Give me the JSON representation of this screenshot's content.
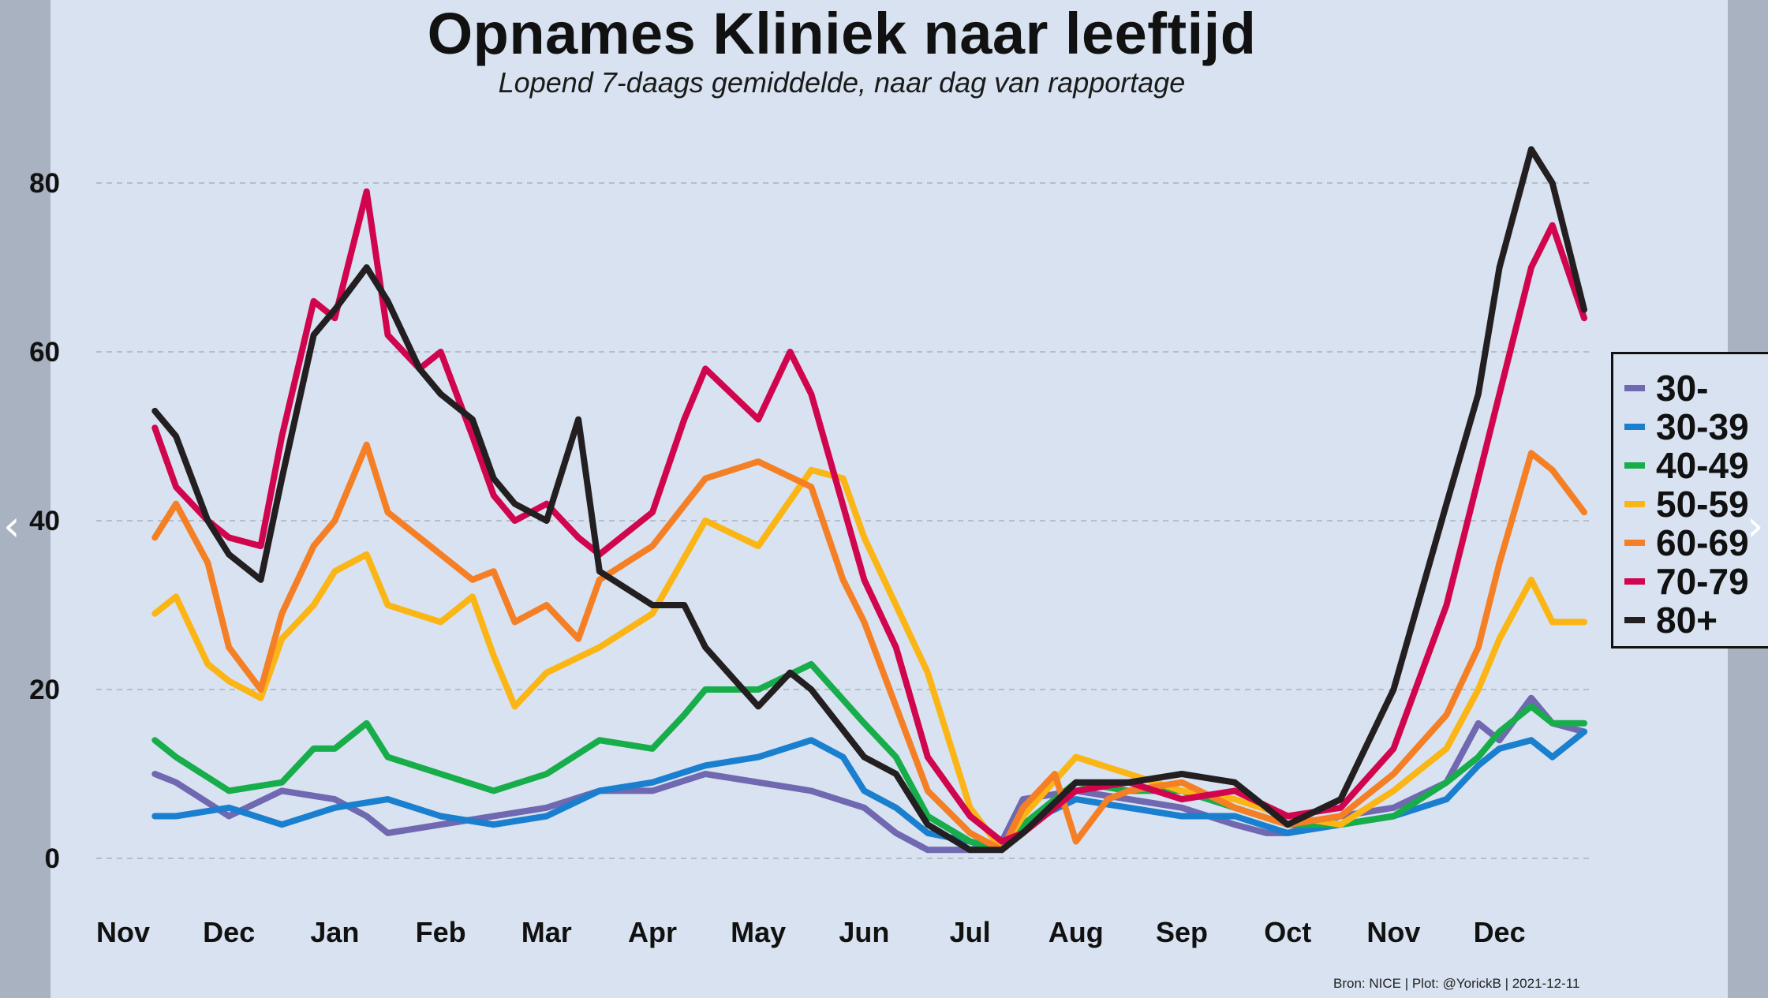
{
  "title": "Opnames Kliniek naar leeftijd",
  "subtitle": "Lopend 7-daags gemiddelde, naar dag van rapportage",
  "source": "Bron: NICE | Plot: @YorickB  |  2021-12-11",
  "nav": {
    "prev_icon": "chevron-left-icon",
    "next_icon": "chevron-right-icon"
  },
  "chart_data": {
    "type": "line",
    "x_unit": "month",
    "x_labels": [
      "Nov",
      "Dec",
      "Jan",
      "Feb",
      "Mar",
      "Apr",
      "May",
      "Jun",
      "Jul",
      "Aug",
      "Sep",
      "Oct",
      "Nov",
      "Dec"
    ],
    "ylim": [
      0,
      90
    ],
    "yticks": [
      0,
      20,
      40,
      60,
      80
    ],
    "grid": "horizontal dashed",
    "legend_position": "right",
    "series": [
      {
        "name": "30-",
        "color": "#7068b0",
        "points": [
          [
            0.3,
            10
          ],
          [
            0.5,
            9
          ],
          [
            1.0,
            5
          ],
          [
            1.5,
            8
          ],
          [
            2.0,
            7
          ],
          [
            2.3,
            5
          ],
          [
            2.5,
            3
          ],
          [
            3.0,
            4
          ],
          [
            3.5,
            5
          ],
          [
            4.0,
            6
          ],
          [
            4.5,
            8
          ],
          [
            5.0,
            8
          ],
          [
            5.5,
            10
          ],
          [
            6.0,
            9
          ],
          [
            6.5,
            8
          ],
          [
            7.0,
            6
          ],
          [
            7.3,
            3
          ],
          [
            7.6,
            1
          ],
          [
            8.0,
            1
          ],
          [
            8.3,
            2
          ],
          [
            8.5,
            7
          ],
          [
            9.0,
            8
          ],
          [
            9.5,
            7
          ],
          [
            10.0,
            6
          ],
          [
            10.5,
            4
          ],
          [
            10.8,
            3
          ],
          [
            11.0,
            3
          ],
          [
            11.5,
            5
          ],
          [
            12.0,
            6
          ],
          [
            12.5,
            9
          ],
          [
            12.8,
            16
          ],
          [
            13.0,
            14
          ],
          [
            13.3,
            19
          ],
          [
            13.5,
            16
          ],
          [
            13.8,
            15
          ]
        ]
      },
      {
        "name": "30-39",
        "color": "#1a7fcf",
        "points": [
          [
            0.3,
            5
          ],
          [
            0.5,
            5
          ],
          [
            1.0,
            6
          ],
          [
            1.5,
            4
          ],
          [
            2.0,
            6
          ],
          [
            2.5,
            7
          ],
          [
            3.0,
            5
          ],
          [
            3.5,
            4
          ],
          [
            4.0,
            5
          ],
          [
            4.5,
            8
          ],
          [
            5.0,
            9
          ],
          [
            5.5,
            11
          ],
          [
            6.0,
            12
          ],
          [
            6.5,
            14
          ],
          [
            6.8,
            12
          ],
          [
            7.0,
            8
          ],
          [
            7.3,
            6
          ],
          [
            7.6,
            3
          ],
          [
            8.0,
            2
          ],
          [
            8.3,
            1
          ],
          [
            8.5,
            4
          ],
          [
            9.0,
            7
          ],
          [
            9.5,
            6
          ],
          [
            10.0,
            5
          ],
          [
            10.5,
            5
          ],
          [
            11.0,
            3
          ],
          [
            11.5,
            4
          ],
          [
            12.0,
            5
          ],
          [
            12.5,
            7
          ],
          [
            12.8,
            11
          ],
          [
            13.0,
            13
          ],
          [
            13.3,
            14
          ],
          [
            13.5,
            12
          ],
          [
            13.8,
            15
          ]
        ]
      },
      {
        "name": "40-49",
        "color": "#17ad4a",
        "points": [
          [
            0.3,
            14
          ],
          [
            0.5,
            12
          ],
          [
            1.0,
            8
          ],
          [
            1.5,
            9
          ],
          [
            1.8,
            13
          ],
          [
            2.0,
            13
          ],
          [
            2.3,
            16
          ],
          [
            2.5,
            12
          ],
          [
            3.0,
            10
          ],
          [
            3.5,
            8
          ],
          [
            4.0,
            10
          ],
          [
            4.5,
            14
          ],
          [
            5.0,
            13
          ],
          [
            5.3,
            17
          ],
          [
            5.5,
            20
          ],
          [
            6.0,
            20
          ],
          [
            6.5,
            23
          ],
          [
            7.0,
            16
          ],
          [
            7.3,
            12
          ],
          [
            7.6,
            5
          ],
          [
            8.0,
            2
          ],
          [
            8.3,
            1
          ],
          [
            8.5,
            4
          ],
          [
            9.0,
            9
          ],
          [
            9.5,
            8
          ],
          [
            10.0,
            8
          ],
          [
            10.5,
            6
          ],
          [
            11.0,
            4
          ],
          [
            11.5,
            4
          ],
          [
            12.0,
            5
          ],
          [
            12.5,
            9
          ],
          [
            12.8,
            12
          ],
          [
            13.0,
            15
          ],
          [
            13.3,
            18
          ],
          [
            13.5,
            16
          ],
          [
            13.8,
            16
          ]
        ]
      },
      {
        "name": "50-59",
        "color": "#fbb514",
        "points": [
          [
            0.3,
            29
          ],
          [
            0.5,
            31
          ],
          [
            0.8,
            23
          ],
          [
            1.0,
            21
          ],
          [
            1.3,
            19
          ],
          [
            1.5,
            26
          ],
          [
            1.8,
            30
          ],
          [
            2.0,
            34
          ],
          [
            2.3,
            36
          ],
          [
            2.5,
            30
          ],
          [
            3.0,
            28
          ],
          [
            3.3,
            31
          ],
          [
            3.5,
            24
          ],
          [
            3.7,
            18
          ],
          [
            4.0,
            22
          ],
          [
            4.5,
            25
          ],
          [
            5.0,
            29
          ],
          [
            5.5,
            40
          ],
          [
            6.0,
            37
          ],
          [
            6.5,
            46
          ],
          [
            6.8,
            45
          ],
          [
            7.0,
            38
          ],
          [
            7.3,
            30
          ],
          [
            7.6,
            22
          ],
          [
            8.0,
            6
          ],
          [
            8.3,
            1
          ],
          [
            8.5,
            5
          ],
          [
            9.0,
            12
          ],
          [
            9.5,
            10
          ],
          [
            10.0,
            8
          ],
          [
            10.5,
            7
          ],
          [
            11.0,
            5
          ],
          [
            11.5,
            4
          ],
          [
            12.0,
            8
          ],
          [
            12.5,
            13
          ],
          [
            12.8,
            20
          ],
          [
            13.0,
            26
          ],
          [
            13.3,
            33
          ],
          [
            13.5,
            28
          ],
          [
            13.8,
            28
          ]
        ]
      },
      {
        "name": "60-69",
        "color": "#f57f25",
        "points": [
          [
            0.3,
            38
          ],
          [
            0.5,
            42
          ],
          [
            0.8,
            35
          ],
          [
            1.0,
            25
          ],
          [
            1.3,
            20
          ],
          [
            1.5,
            29
          ],
          [
            1.8,
            37
          ],
          [
            2.0,
            40
          ],
          [
            2.3,
            49
          ],
          [
            2.5,
            41
          ],
          [
            3.0,
            36
          ],
          [
            3.3,
            33
          ],
          [
            3.5,
            34
          ],
          [
            3.7,
            28
          ],
          [
            4.0,
            30
          ],
          [
            4.3,
            26
          ],
          [
            4.5,
            33
          ],
          [
            5.0,
            37
          ],
          [
            5.5,
            45
          ],
          [
            6.0,
            47
          ],
          [
            6.5,
            44
          ],
          [
            6.8,
            33
          ],
          [
            7.0,
            28
          ],
          [
            7.3,
            18
          ],
          [
            7.6,
            8
          ],
          [
            8.0,
            3
          ],
          [
            8.3,
            1
          ],
          [
            8.5,
            6
          ],
          [
            8.8,
            10
          ],
          [
            9.0,
            2
          ],
          [
            9.3,
            7
          ],
          [
            9.5,
            8
          ],
          [
            10.0,
            9
          ],
          [
            10.5,
            6
          ],
          [
            11.0,
            4
          ],
          [
            11.5,
            5
          ],
          [
            12.0,
            10
          ],
          [
            12.5,
            17
          ],
          [
            12.8,
            25
          ],
          [
            13.0,
            35
          ],
          [
            13.3,
            48
          ],
          [
            13.5,
            46
          ],
          [
            13.8,
            41
          ]
        ]
      },
      {
        "name": "70-79",
        "color": "#d1044e",
        "points": [
          [
            0.3,
            51
          ],
          [
            0.5,
            44
          ],
          [
            0.8,
            40
          ],
          [
            1.0,
            38
          ],
          [
            1.3,
            37
          ],
          [
            1.5,
            50
          ],
          [
            1.8,
            66
          ],
          [
            2.0,
            64
          ],
          [
            2.3,
            79
          ],
          [
            2.5,
            62
          ],
          [
            2.8,
            58
          ],
          [
            3.0,
            60
          ],
          [
            3.3,
            50
          ],
          [
            3.5,
            43
          ],
          [
            3.7,
            40
          ],
          [
            4.0,
            42
          ],
          [
            4.3,
            38
          ],
          [
            4.5,
            36
          ],
          [
            5.0,
            41
          ],
          [
            5.3,
            52
          ],
          [
            5.5,
            58
          ],
          [
            6.0,
            52
          ],
          [
            6.3,
            60
          ],
          [
            6.5,
            55
          ],
          [
            7.0,
            33
          ],
          [
            7.3,
            25
          ],
          [
            7.6,
            12
          ],
          [
            8.0,
            5
          ],
          [
            8.3,
            2
          ],
          [
            8.5,
            3
          ],
          [
            9.0,
            8
          ],
          [
            9.5,
            9
          ],
          [
            10.0,
            7
          ],
          [
            10.5,
            8
          ],
          [
            11.0,
            5
          ],
          [
            11.5,
            6
          ],
          [
            12.0,
            13
          ],
          [
            12.5,
            30
          ],
          [
            12.8,
            45
          ],
          [
            13.0,
            55
          ],
          [
            13.3,
            70
          ],
          [
            13.5,
            75
          ],
          [
            13.8,
            64
          ]
        ]
      },
      {
        "name": "80+",
        "color": "#231f20",
        "points": [
          [
            0.3,
            53
          ],
          [
            0.5,
            50
          ],
          [
            0.8,
            40
          ],
          [
            1.0,
            36
          ],
          [
            1.3,
            33
          ],
          [
            1.5,
            45
          ],
          [
            1.8,
            62
          ],
          [
            2.0,
            65
          ],
          [
            2.3,
            70
          ],
          [
            2.5,
            66
          ],
          [
            2.8,
            58
          ],
          [
            3.0,
            55
          ],
          [
            3.3,
            52
          ],
          [
            3.5,
            45
          ],
          [
            3.7,
            42
          ],
          [
            4.0,
            40
          ],
          [
            4.3,
            52
          ],
          [
            4.5,
            34
          ],
          [
            5.0,
            30
          ],
          [
            5.3,
            30
          ],
          [
            5.5,
            25
          ],
          [
            6.0,
            18
          ],
          [
            6.3,
            22
          ],
          [
            6.5,
            20
          ],
          [
            7.0,
            12
          ],
          [
            7.3,
            10
          ],
          [
            7.6,
            4
          ],
          [
            8.0,
            1
          ],
          [
            8.3,
            1
          ],
          [
            8.5,
            3
          ],
          [
            9.0,
            9
          ],
          [
            9.5,
            9
          ],
          [
            10.0,
            10
          ],
          [
            10.5,
            9
          ],
          [
            11.0,
            4
          ],
          [
            11.5,
            7
          ],
          [
            12.0,
            20
          ],
          [
            12.5,
            42
          ],
          [
            12.8,
            55
          ],
          [
            13.0,
            70
          ],
          [
            13.3,
            84
          ],
          [
            13.5,
            80
          ],
          [
            13.8,
            65
          ]
        ]
      }
    ]
  }
}
